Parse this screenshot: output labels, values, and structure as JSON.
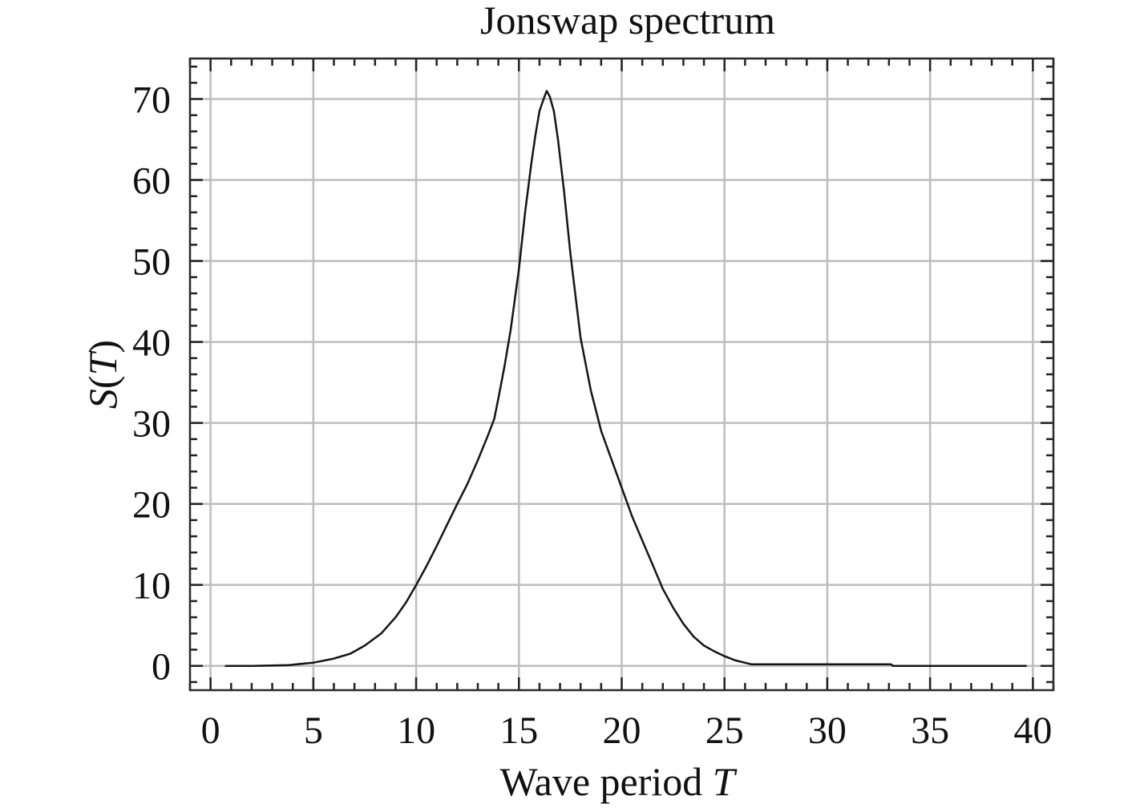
{
  "chart_data": {
    "type": "line",
    "title": "Jonswap spectrum",
    "xlabel": {
      "prefix": "Wave period ",
      "variable": "T"
    },
    "ylabel": {
      "prefix": "S(",
      "variable": "T",
      "suffix": ")"
    },
    "xlim": [
      -1,
      41
    ],
    "ylim": [
      -3,
      75
    ],
    "x_ticks": [
      0,
      5,
      10,
      15,
      20,
      25,
      30,
      35,
      40
    ],
    "y_ticks": [
      0,
      10,
      20,
      30,
      40,
      50,
      60,
      70
    ],
    "x_tick_labels": [
      "0",
      "5",
      "10",
      "15",
      "20",
      "25",
      "30",
      "35",
      "40"
    ],
    "y_tick_labels": [
      "0",
      "10",
      "20",
      "30",
      "40",
      "50",
      "60",
      "70"
    ],
    "x_minor_step": 1,
    "y_minor_step": 2,
    "grid": true,
    "series": [
      {
        "name": "S(T)",
        "color": "#151515",
        "x": [
          0.7,
          2,
          3.8,
          5,
          6,
          6.8,
          7.5,
          8.3,
          9,
          9.5,
          10,
          10.5,
          11,
          11.5,
          12,
          12.5,
          13,
          13.5,
          13.8,
          14,
          14.3,
          14.6,
          15,
          15.3,
          15.6,
          15.8,
          16,
          16.2,
          16.35,
          16.5,
          16.7,
          16.9,
          17.2,
          17.5,
          18,
          18.5,
          19,
          19.5,
          20,
          20.5,
          21,
          21.5,
          22,
          22.5,
          23,
          23.5,
          24,
          24.5,
          25,
          25.5,
          26.3,
          28,
          30,
          31.5,
          33.1,
          33.2,
          35,
          37,
          39.7
        ],
        "y": [
          0,
          0,
          0.1,
          0.4,
          0.9,
          1.5,
          2.5,
          4,
          6,
          7.8,
          10,
          12.3,
          14.8,
          17.4,
          20,
          22.5,
          25.4,
          28.5,
          30.5,
          33,
          37,
          41.5,
          49,
          56,
          62,
          65.5,
          68.5,
          70,
          71,
          70.3,
          68.5,
          65,
          58.5,
          51,
          40.5,
          34,
          29,
          25.5,
          22,
          18.5,
          15.5,
          12.5,
          9.5,
          7.2,
          5.2,
          3.6,
          2.5,
          1.8,
          1.2,
          0.7,
          0.2,
          0.2,
          0.2,
          0.2,
          0.2,
          0,
          0,
          0,
          0
        ]
      }
    ]
  }
}
